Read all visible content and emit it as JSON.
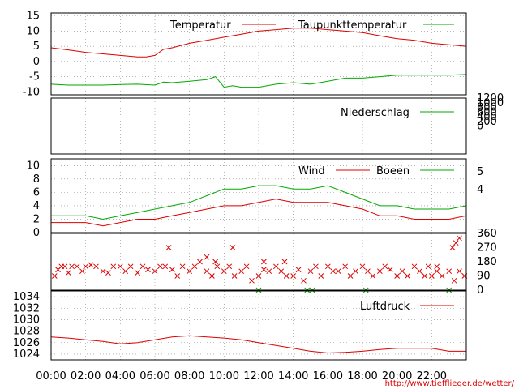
{
  "chart_data": [
    {
      "type": "line",
      "id": "temp",
      "series": [
        {
          "name": "Temperatur",
          "color": "#dd0000",
          "x": [
            0,
            1,
            2,
            3,
            4,
            5,
            5.5,
            6,
            6.5,
            7,
            8,
            9,
            10,
            11,
            12,
            13,
            14,
            15,
            16,
            17,
            18,
            19,
            20,
            21,
            22,
            23,
            24
          ],
          "y": [
            4.5,
            3.8,
            3.0,
            2.5,
            2.0,
            1.5,
            1.5,
            2.0,
            4.0,
            4.5,
            6.0,
            7.0,
            8.0,
            9.0,
            10.0,
            10.5,
            11.0,
            11.0,
            10.5,
            10.0,
            9.5,
            8.5,
            7.5,
            7.0,
            6.0,
            5.5,
            5.0
          ]
        },
        {
          "name": "Taupunkttemperatur",
          "color": "#00aa00",
          "x": [
            0,
            1,
            2,
            3,
            4,
            5,
            6,
            6.5,
            7,
            8,
            9,
            9.5,
            10,
            10.5,
            11,
            12,
            13,
            14,
            15,
            16,
            17,
            18,
            19,
            20,
            21,
            22,
            23,
            24
          ],
          "y": [
            -7.5,
            -7.8,
            -7.8,
            -7.8,
            -7.6,
            -7.5,
            -7.8,
            -6.8,
            -7.0,
            -6.5,
            -6.0,
            -5.0,
            -8.5,
            -8.0,
            -8.5,
            -8.5,
            -7.5,
            -7.0,
            -7.5,
            -6.5,
            -5.5,
            -5.5,
            -5.0,
            -4.5,
            -4.5,
            -4.5,
            -4.5,
            -4.3
          ]
        }
      ],
      "yticks": [
        15,
        10,
        5,
        0,
        -5,
        -10
      ],
      "ylim": [
        -11,
        16
      ]
    },
    {
      "type": "line",
      "id": "rain",
      "series": [
        {
          "name": "Niederschlag",
          "color": "#00aa00",
          "x": [
            0,
            24
          ],
          "y": [
            0,
            0
          ]
        }
      ],
      "yticks_right": [
        1200,
        1000,
        800,
        600,
        400,
        200,
        0
      ],
      "ylim": [
        -1200,
        1200
      ]
    },
    {
      "type": "line",
      "id": "wind",
      "series": [
        {
          "name": "Wind",
          "color": "#dd0000",
          "x": [
            0,
            1,
            2,
            3,
            4,
            5,
            6,
            7,
            8,
            9,
            10,
            11,
            12,
            13,
            14,
            15,
            16,
            17,
            18,
            19,
            20,
            21,
            22,
            23,
            24
          ],
          "y": [
            1.5,
            1.5,
            1.5,
            1.0,
            1.5,
            2.0,
            2.0,
            2.5,
            3.0,
            3.5,
            4.0,
            4.0,
            4.5,
            5.0,
            4.5,
            4.5,
            4.5,
            4.0,
            3.5,
            2.5,
            2.5,
            2.0,
            2.0,
            2.0,
            2.5
          ]
        },
        {
          "name": "Boeen",
          "color": "#00aa00",
          "x": [
            0,
            1,
            2,
            3,
            4,
            5,
            6,
            7,
            8,
            9,
            10,
            11,
            12,
            13,
            14,
            15,
            16,
            17,
            18,
            19,
            20,
            21,
            22,
            23,
            24
          ],
          "y": [
            2.5,
            2.5,
            2.5,
            2.0,
            2.5,
            3.0,
            3.5,
            4.0,
            4.5,
            5.5,
            6.5,
            6.5,
            7.0,
            7.0,
            6.5,
            6.5,
            7.0,
            6.0,
            5.0,
            4.0,
            4.0,
            3.5,
            3.5,
            3.5,
            4.0
          ]
        }
      ],
      "yticks": [
        10,
        8,
        6,
        4,
        2,
        0
      ],
      "yticks_right": [
        5,
        4
      ],
      "ylim": [
        0,
        11
      ]
    },
    {
      "type": "scatter",
      "id": "direction",
      "series": [
        {
          "color": "#dd0000",
          "x": [
            0.2,
            0.4,
            0.6,
            0.8,
            1.0,
            1.2,
            1.5,
            1.8,
            2.0,
            2.3,
            2.6,
            3.0,
            3.3,
            3.6,
            4.0,
            4.3,
            4.6,
            5.0,
            5.3,
            5.6,
            6.0,
            6.3,
            6.6,
            7.0,
            7.3,
            7.6,
            8.0,
            8.3,
            8.6,
            9.0,
            9.3,
            9.6,
            10.0,
            10.3,
            10.6,
            11.0,
            11.3,
            11.6,
            12.0,
            12.3,
            12.6,
            13.0,
            13.3,
            13.6,
            14.0,
            14.3,
            14.6,
            15.0,
            15.3,
            15.6,
            16.0,
            16.3,
            16.6,
            17.0,
            17.3,
            17.6,
            18.0,
            18.3,
            18.6,
            19.0,
            19.3,
            19.6,
            20.0,
            20.3,
            20.6,
            21.0,
            21.3,
            21.6,
            22.0,
            22.3,
            22.6,
            23.0,
            23.3,
            23.6,
            23.9
          ],
          "y": [
            90,
            130,
            150,
            150,
            110,
            150,
            150,
            120,
            150,
            160,
            150,
            120,
            110,
            150,
            150,
            120,
            150,
            110,
            150,
            130,
            120,
            150,
            150,
            130,
            90,
            150,
            120,
            150,
            180,
            120,
            90,
            150,
            120,
            150,
            90,
            120,
            150,
            60,
            90,
            130,
            120,
            150,
            120,
            90,
            90,
            130,
            60,
            120,
            150,
            90,
            150,
            120,
            120,
            150,
            90,
            120,
            150,
            120,
            90,
            120,
            150,
            130,
            90,
            120,
            90,
            150,
            120,
            90,
            90,
            120,
            90,
            120,
            60,
            120,
            90
          ]
        },
        {
          "color": "#dd0000",
          "x": [
            6.8,
            9.0,
            9.5,
            10.5,
            12.3,
            13.5,
            21.8,
            22.3,
            23.2,
            23.4,
            23.6
          ],
          "y": [
            270,
            210,
            180,
            270,
            180,
            180,
            150,
            150,
            270,
            300,
            330
          ]
        },
        {
          "color": "#00aa00",
          "x": [
            12.0,
            14.8,
            15.1,
            18.2,
            23.0
          ],
          "y": [
            0,
            0,
            0,
            0,
            0
          ]
        }
      ],
      "yticks_right": [
        360,
        270,
        180,
        90,
        0
      ],
      "ylim": [
        0,
        360
      ]
    },
    {
      "type": "line",
      "id": "pressure",
      "series": [
        {
          "name": "Luftdruck",
          "color": "#dd0000",
          "x": [
            0,
            1,
            2,
            3,
            4,
            5,
            6,
            7,
            8,
            9,
            10,
            11,
            12,
            13,
            14,
            15,
            16,
            17,
            18,
            19,
            20,
            21,
            22,
            23,
            24
          ],
          "y": [
            1027.0,
            1026.8,
            1026.5,
            1026.2,
            1025.8,
            1026.0,
            1026.5,
            1027.0,
            1027.2,
            1027.0,
            1026.8,
            1026.5,
            1026.0,
            1025.5,
            1025.0,
            1024.5,
            1024.2,
            1024.3,
            1024.5,
            1024.8,
            1025.0,
            1025.0,
            1025.0,
            1024.5,
            1024.5
          ]
        }
      ],
      "yticks": [
        1034,
        1032,
        1030,
        1028,
        1026,
        1024
      ],
      "ylim": [
        1023,
        1035
      ]
    }
  ],
  "x_axis": {
    "ticks": [
      0,
      2,
      4,
      6,
      8,
      10,
      12,
      14,
      16,
      18,
      20,
      22
    ],
    "tick_labels": [
      "00:00",
      "02:00",
      "04:00",
      "06:00",
      "08:00",
      "10:00",
      "12:00",
      "14:00",
      "16:00",
      "18:00",
      "20:00",
      "22:00"
    ],
    "xlim": [
      0,
      24
    ]
  },
  "footer": {
    "url": "http://www.tiefflieger.de/wetter/"
  }
}
